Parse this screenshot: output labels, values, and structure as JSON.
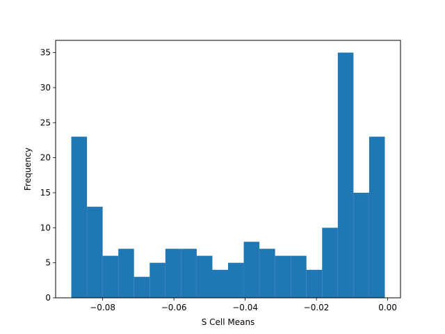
{
  "chart_data": {
    "type": "bar",
    "title": "",
    "xlabel": "S Cell Means",
    "ylabel": "Frequency",
    "bin_edges": [
      -0.0888,
      -0.0844,
      -0.08,
      -0.0756,
      -0.0712,
      -0.0668,
      -0.0624,
      -0.058,
      -0.0536,
      -0.0492,
      -0.0448,
      -0.0404,
      -0.036,
      -0.0316,
      -0.0272,
      -0.0228,
      -0.0184,
      -0.014,
      -0.0096,
      -0.0052,
      -0.0008
    ],
    "values": [
      23,
      13,
      6,
      7,
      3,
      5,
      7,
      7,
      6,
      4,
      5,
      8,
      7,
      6,
      6,
      4,
      10,
      35,
      15,
      23
    ],
    "xlim": [
      -0.0932,
      0.0036
    ],
    "ylim": [
      0,
      36.75
    ],
    "xticks": [
      -0.08,
      -0.06,
      -0.04,
      -0.02,
      0.0
    ],
    "xtick_labels": [
      "−0.08",
      "−0.06",
      "−0.04",
      "−0.02",
      "0.00"
    ],
    "yticks": [
      0,
      5,
      10,
      15,
      20,
      25,
      30,
      35
    ],
    "ytick_labels": [
      "0",
      "5",
      "10",
      "15",
      "20",
      "25",
      "30",
      "35"
    ],
    "bar_color": "#1f77b4",
    "grid": false,
    "legend": "none"
  }
}
